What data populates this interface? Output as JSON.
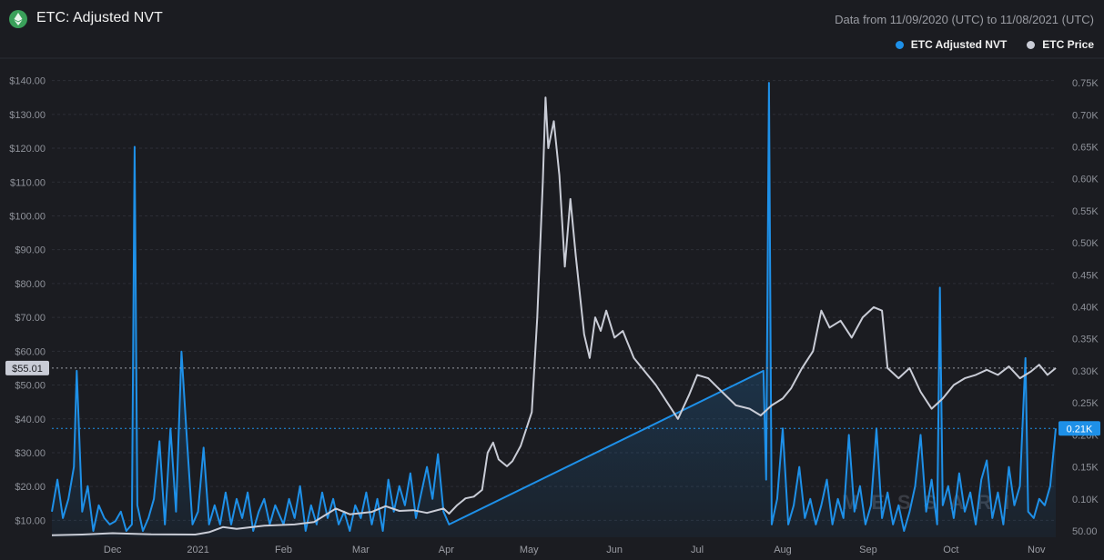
{
  "header": {
    "title": "ETC: Adjusted NVT",
    "date_range": "Data from 11/09/2020 (UTC) to 11/08/2021 (UTC)"
  },
  "watermark": "MESSARI",
  "colors": {
    "background": "#1b1c21",
    "nvt": "#1e90e8",
    "price": "#c9ccd6",
    "logo": "#3aa05a"
  },
  "icons": {
    "logo": "etc-logo-icon"
  },
  "chart_data": {
    "type": "line",
    "x_axis": {
      "start": "2020-11-09",
      "end": "2021-11-08",
      "tick_labels": [
        "Dec",
        "2021",
        "Feb",
        "Mar",
        "Apr",
        "May",
        "Jun",
        "Jul",
        "Aug",
        "Sep",
        "Oct",
        "Nov"
      ],
      "tick_dates": [
        "2020-12-01",
        "2021-01-01",
        "2021-02-01",
        "2021-03-01",
        "2021-04-01",
        "2021-05-01",
        "2021-06-01",
        "2021-07-01",
        "2021-08-01",
        "2021-09-01",
        "2021-10-01",
        "2021-11-01"
      ]
    },
    "left_axis": {
      "ylim": [
        5,
        145
      ],
      "ticks": [
        10,
        20,
        30,
        40,
        50,
        60,
        70,
        80,
        90,
        100,
        110,
        120,
        130,
        140
      ],
      "tick_labels": [
        "$10.00",
        "$20.00",
        "$30.00",
        "$40.00",
        "$50.00",
        "$60.00",
        "$70.00",
        "$80.00",
        "$90.00",
        "$100.00",
        "$110.00",
        "$120.00",
        "$130.00",
        "$140.00"
      ]
    },
    "right_axis": {
      "ylim": [
        0.04,
        0.78
      ],
      "ticks": [
        0.05,
        0.1,
        0.15,
        0.2,
        0.25,
        0.3,
        0.35,
        0.4,
        0.45,
        0.5,
        0.55,
        0.6,
        0.65,
        0.7,
        0.75
      ],
      "tick_labels": [
        "50.00",
        "0.10K",
        "0.15K",
        "0.20K",
        "0.25K",
        "0.30K",
        "0.35K",
        "0.40K",
        "0.45K",
        "0.50K",
        "0.55K",
        "0.60K",
        "0.65K",
        "0.70K",
        "0.75K"
      ]
    },
    "crosshair": {
      "left_value": 55.01,
      "left_label": "$55.01",
      "right_value": 0.21,
      "right_label": "0.21K"
    },
    "grid": true,
    "legend_position": "top-right",
    "series": [
      {
        "name": "ETC Adjusted NVT",
        "axis": "right",
        "color": "#1e90e8",
        "area": true,
        "points": [
          [
            "2020-11-09",
            0.08
          ],
          [
            "2020-11-11",
            0.13
          ],
          [
            "2020-11-13",
            0.07
          ],
          [
            "2020-11-15",
            0.1
          ],
          [
            "2020-11-17",
            0.15
          ],
          [
            "2020-11-18",
            0.3
          ],
          [
            "2020-11-20",
            0.08
          ],
          [
            "2020-11-22",
            0.12
          ],
          [
            "2020-11-24",
            0.05
          ],
          [
            "2020-11-26",
            0.09
          ],
          [
            "2020-11-28",
            0.07
          ],
          [
            "2020-11-30",
            0.06
          ],
          [
            "2020-12-02",
            0.065
          ],
          [
            "2020-12-04",
            0.08
          ],
          [
            "2020-12-06",
            0.05
          ],
          [
            "2020-12-08",
            0.06
          ],
          [
            "2020-12-09",
            0.65
          ],
          [
            "2020-12-10",
            0.09
          ],
          [
            "2020-12-12",
            0.05
          ],
          [
            "2020-12-14",
            0.07
          ],
          [
            "2020-12-16",
            0.1
          ],
          [
            "2020-12-18",
            0.19
          ],
          [
            "2020-12-20",
            0.06
          ],
          [
            "2020-12-22",
            0.21
          ],
          [
            "2020-12-24",
            0.08
          ],
          [
            "2020-12-26",
            0.33
          ],
          [
            "2020-12-28",
            0.19
          ],
          [
            "2020-12-30",
            0.06
          ],
          [
            "2021-01-01",
            0.08
          ],
          [
            "2021-01-03",
            0.18
          ],
          [
            "2021-01-05",
            0.06
          ],
          [
            "2021-01-07",
            0.09
          ],
          [
            "2021-01-09",
            0.06
          ],
          [
            "2021-01-11",
            0.11
          ],
          [
            "2021-01-13",
            0.06
          ],
          [
            "2021-01-15",
            0.1
          ],
          [
            "2021-01-17",
            0.07
          ],
          [
            "2021-01-19",
            0.11
          ],
          [
            "2021-01-21",
            0.05
          ],
          [
            "2021-01-23",
            0.08
          ],
          [
            "2021-01-25",
            0.1
          ],
          [
            "2021-01-27",
            0.06
          ],
          [
            "2021-01-29",
            0.09
          ],
          [
            "2021-02-01",
            0.06
          ],
          [
            "2021-02-03",
            0.1
          ],
          [
            "2021-02-05",
            0.07
          ],
          [
            "2021-02-07",
            0.12
          ],
          [
            "2021-02-09",
            0.05
          ],
          [
            "2021-02-11",
            0.09
          ],
          [
            "2021-02-13",
            0.06
          ],
          [
            "2021-02-15",
            0.11
          ],
          [
            "2021-02-17",
            0.07
          ],
          [
            "2021-02-19",
            0.1
          ],
          [
            "2021-02-21",
            0.06
          ],
          [
            "2021-02-23",
            0.08
          ],
          [
            "2021-02-25",
            0.05
          ],
          [
            "2021-02-27",
            0.09
          ],
          [
            "2021-03-01",
            0.07
          ],
          [
            "2021-03-03",
            0.11
          ],
          [
            "2021-03-05",
            0.06
          ],
          [
            "2021-03-07",
            0.1
          ],
          [
            "2021-03-09",
            0.05
          ],
          [
            "2021-03-11",
            0.13
          ],
          [
            "2021-03-13",
            0.08
          ],
          [
            "2021-03-15",
            0.12
          ],
          [
            "2021-03-17",
            0.09
          ],
          [
            "2021-03-19",
            0.14
          ],
          [
            "2021-03-21",
            0.07
          ],
          [
            "2021-03-23",
            0.11
          ],
          [
            "2021-03-25",
            0.15
          ],
          [
            "2021-03-27",
            0.1
          ],
          [
            "2021-03-29",
            0.17
          ],
          [
            "2021-03-31",
            0.08
          ],
          [
            "2021-04-02",
            0.06
          ],
          [
            "2021-07-25",
            0.3
          ],
          [
            "2021-07-26",
            0.13
          ],
          [
            "2021-07-27",
            0.75
          ],
          [
            "2021-07-28",
            0.06
          ],
          [
            "2021-07-30",
            0.1
          ],
          [
            "2021-08-01",
            0.21
          ],
          [
            "2021-08-03",
            0.06
          ],
          [
            "2021-08-05",
            0.09
          ],
          [
            "2021-08-07",
            0.15
          ],
          [
            "2021-08-09",
            0.07
          ],
          [
            "2021-08-11",
            0.1
          ],
          [
            "2021-08-13",
            0.06
          ],
          [
            "2021-08-15",
            0.09
          ],
          [
            "2021-08-17",
            0.13
          ],
          [
            "2021-08-19",
            0.06
          ],
          [
            "2021-08-21",
            0.1
          ],
          [
            "2021-08-23",
            0.07
          ],
          [
            "2021-08-25",
            0.2
          ],
          [
            "2021-08-27",
            0.08
          ],
          [
            "2021-08-29",
            0.12
          ],
          [
            "2021-08-31",
            0.06
          ],
          [
            "2021-09-02",
            0.09
          ],
          [
            "2021-09-04",
            0.21
          ],
          [
            "2021-09-06",
            0.07
          ],
          [
            "2021-09-08",
            0.11
          ],
          [
            "2021-09-10",
            0.06
          ],
          [
            "2021-09-12",
            0.09
          ],
          [
            "2021-09-14",
            0.05
          ],
          [
            "2021-09-16",
            0.08
          ],
          [
            "2021-09-18",
            0.12
          ],
          [
            "2021-09-20",
            0.2
          ],
          [
            "2021-09-22",
            0.08
          ],
          [
            "2021-09-24",
            0.13
          ],
          [
            "2021-09-26",
            0.06
          ],
          [
            "2021-09-27",
            0.43
          ],
          [
            "2021-09-28",
            0.09
          ],
          [
            "2021-09-30",
            0.12
          ],
          [
            "2021-10-02",
            0.07
          ],
          [
            "2021-10-04",
            0.14
          ],
          [
            "2021-10-06",
            0.08
          ],
          [
            "2021-10-08",
            0.11
          ],
          [
            "2021-10-10",
            0.06
          ],
          [
            "2021-10-12",
            0.13
          ],
          [
            "2021-10-14",
            0.16
          ],
          [
            "2021-10-16",
            0.07
          ],
          [
            "2021-10-18",
            0.11
          ],
          [
            "2021-10-20",
            0.06
          ],
          [
            "2021-10-22",
            0.15
          ],
          [
            "2021-10-24",
            0.09
          ],
          [
            "2021-10-26",
            0.12
          ],
          [
            "2021-10-28",
            0.32
          ],
          [
            "2021-10-29",
            0.08
          ],
          [
            "2021-10-31",
            0.07
          ],
          [
            "2021-11-02",
            0.1
          ],
          [
            "2021-11-04",
            0.09
          ],
          [
            "2021-11-06",
            0.12
          ],
          [
            "2021-11-08",
            0.21
          ]
        ]
      },
      {
        "name": "ETC Price",
        "axis": "left",
        "color": "#c9ccd6",
        "area": false,
        "points": [
          [
            "2020-11-09",
            5.6
          ],
          [
            "2020-11-20",
            5.8
          ],
          [
            "2020-12-01",
            6.2
          ],
          [
            "2020-12-15",
            5.9
          ],
          [
            "2020-12-31",
            5.8
          ],
          [
            "2021-01-05",
            6.5
          ],
          [
            "2021-01-10",
            8.0
          ],
          [
            "2021-01-15",
            7.5
          ],
          [
            "2021-01-25",
            8.4
          ],
          [
            "2021-02-05",
            8.8
          ],
          [
            "2021-02-12",
            9.5
          ],
          [
            "2021-02-20",
            13.5
          ],
          [
            "2021-02-25",
            11.8
          ],
          [
            "2021-03-05",
            12.5
          ],
          [
            "2021-03-10",
            14.2
          ],
          [
            "2021-03-15",
            12.8
          ],
          [
            "2021-03-20",
            13.0
          ],
          [
            "2021-03-25",
            12.2
          ],
          [
            "2021-03-31",
            13.5
          ],
          [
            "2021-04-02",
            12.0
          ],
          [
            "2021-04-05",
            14.5
          ],
          [
            "2021-04-08",
            16.5
          ],
          [
            "2021-04-11",
            17.0
          ],
          [
            "2021-04-14",
            19.0
          ],
          [
            "2021-04-16",
            30.0
          ],
          [
            "2021-04-18",
            33.0
          ],
          [
            "2021-04-20",
            28.0
          ],
          [
            "2021-04-23",
            26.0
          ],
          [
            "2021-04-25",
            27.5
          ],
          [
            "2021-04-28",
            32.0
          ],
          [
            "2021-05-02",
            42.0
          ],
          [
            "2021-05-04",
            70.0
          ],
          [
            "2021-05-06",
            110.0
          ],
          [
            "2021-05-07",
            135.0
          ],
          [
            "2021-05-08",
            120.0
          ],
          [
            "2021-05-10",
            128.0
          ],
          [
            "2021-05-12",
            112.0
          ],
          [
            "2021-05-14",
            85.0
          ],
          [
            "2021-05-16",
            105.0
          ],
          [
            "2021-05-18",
            88.0
          ],
          [
            "2021-05-21",
            65.0
          ],
          [
            "2021-05-23",
            58.0
          ],
          [
            "2021-05-25",
            70.0
          ],
          [
            "2021-05-27",
            66.0
          ],
          [
            "2021-05-29",
            72.0
          ],
          [
            "2021-06-01",
            64.0
          ],
          [
            "2021-06-04",
            66.0
          ],
          [
            "2021-06-08",
            58.0
          ],
          [
            "2021-06-12",
            54.0
          ],
          [
            "2021-06-16",
            50.0
          ],
          [
            "2021-06-20",
            45.0
          ],
          [
            "2021-06-24",
            40.0
          ],
          [
            "2021-06-28",
            47.0
          ],
          [
            "2021-07-01",
            53.0
          ],
          [
            "2021-07-05",
            52.0
          ],
          [
            "2021-07-10",
            48.0
          ],
          [
            "2021-07-15",
            44.0
          ],
          [
            "2021-07-20",
            43.0
          ],
          [
            "2021-07-24",
            41.0
          ],
          [
            "2021-07-28",
            44.0
          ],
          [
            "2021-08-01",
            46.0
          ],
          [
            "2021-08-04",
            49.0
          ],
          [
            "2021-08-08",
            55.0
          ],
          [
            "2021-08-12",
            60.0
          ],
          [
            "2021-08-15",
            72.0
          ],
          [
            "2021-08-18",
            67.0
          ],
          [
            "2021-08-22",
            69.0
          ],
          [
            "2021-08-26",
            64.0
          ],
          [
            "2021-08-30",
            70.0
          ],
          [
            "2021-09-03",
            73.0
          ],
          [
            "2021-09-06",
            72.0
          ],
          [
            "2021-09-08",
            55.0
          ],
          [
            "2021-09-12",
            52.0
          ],
          [
            "2021-09-16",
            55.0
          ],
          [
            "2021-09-20",
            48.0
          ],
          [
            "2021-09-24",
            43.0
          ],
          [
            "2021-09-28",
            46.0
          ],
          [
            "2021-10-02",
            50.0
          ],
          [
            "2021-10-06",
            52.0
          ],
          [
            "2021-10-10",
            53.0
          ],
          [
            "2021-10-14",
            54.5
          ],
          [
            "2021-10-18",
            53.0
          ],
          [
            "2021-10-22",
            55.5
          ],
          [
            "2021-10-26",
            52.0
          ],
          [
            "2021-10-30",
            54.0
          ],
          [
            "2021-11-02",
            56.0
          ],
          [
            "2021-11-05",
            53.0
          ],
          [
            "2021-11-08",
            55.0
          ]
        ]
      }
    ]
  }
}
